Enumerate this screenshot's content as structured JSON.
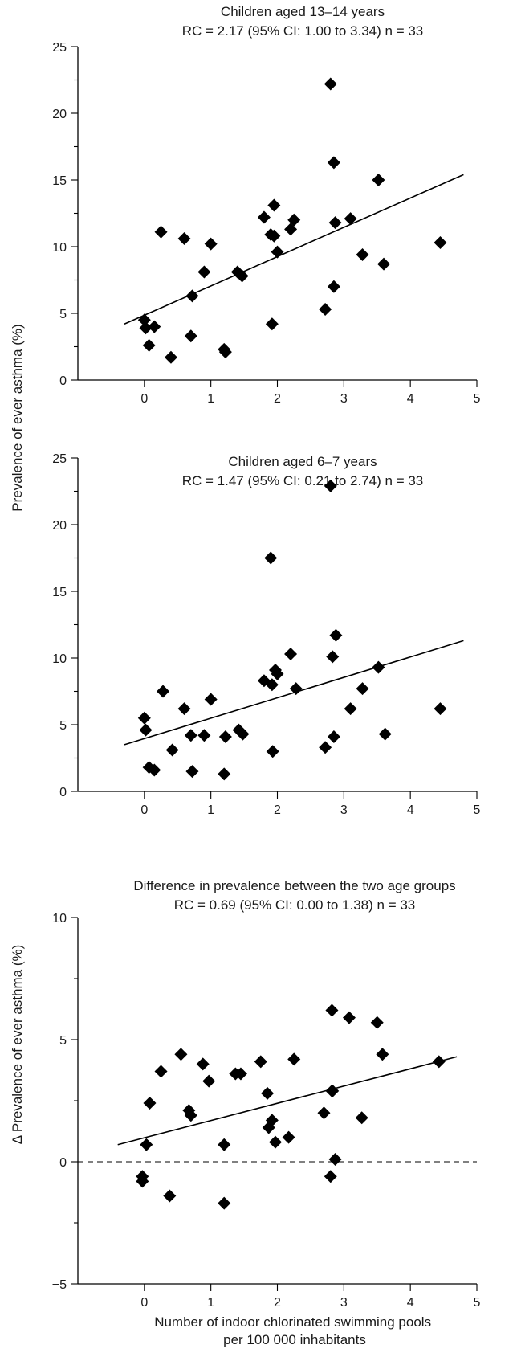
{
  "ylabel_shared": "Prevalence of ever asthma (%)",
  "chart_data": [
    {
      "type": "scatter",
      "title": "Children aged 13–14 years",
      "subtitle": "RC = 2.17 (95% CI: 1.00 to 3.34) n = 33",
      "xlabel": "",
      "ylabel": "Prevalence of ever asthma (%)",
      "xlim": [
        -1,
        5
      ],
      "ylim": [
        0,
        25
      ],
      "xticks": [
        "0",
        "1",
        "2",
        "3",
        "4",
        "5"
      ],
      "yticks": [
        "0",
        "5",
        "10",
        "15",
        "20",
        "25"
      ],
      "grid": false,
      "regression": {
        "x": [
          -0.3,
          4.8
        ],
        "y": [
          4.2,
          15.4
        ]
      },
      "x": [
        0.0,
        0.02,
        0.07,
        0.15,
        0.25,
        0.4,
        0.6,
        0.7,
        0.72,
        0.9,
        1.0,
        1.2,
        1.22,
        1.4,
        1.47,
        1.8,
        1.9,
        1.92,
        1.95,
        1.95,
        2.0,
        2.2,
        2.25,
        2.72,
        2.8,
        2.85,
        2.85,
        2.87,
        3.1,
        3.28,
        3.52,
        3.6,
        4.45
      ],
      "y": [
        4.5,
        3.9,
        2.6,
        4.0,
        11.1,
        1.7,
        10.6,
        3.3,
        6.3,
        8.1,
        10.2,
        2.3,
        2.1,
        8.1,
        7.8,
        12.2,
        10.9,
        4.2,
        13.1,
        10.8,
        9.6,
        11.3,
        12.0,
        5.3,
        22.2,
        16.3,
        7.0,
        11.8,
        12.1,
        9.4,
        15.0,
        8.7,
        10.3
      ]
    },
    {
      "type": "scatter",
      "title": "Children aged 6–7 years",
      "subtitle": "RC = 1.47 (95% CI: 0.21 to 2.74) n = 33",
      "xlabel": "",
      "ylabel": "Prevalence of ever asthma (%)",
      "xlim": [
        -1,
        5
      ],
      "ylim": [
        0,
        25
      ],
      "xticks": [
        "0",
        "1",
        "2",
        "3",
        "4",
        "5"
      ],
      "yticks": [
        "0",
        "5",
        "10",
        "15",
        "20",
        "25"
      ],
      "grid": false,
      "regression": {
        "x": [
          -0.3,
          4.8
        ],
        "y": [
          3.5,
          11.3
        ]
      },
      "x": [
        0.0,
        0.02,
        0.07,
        0.15,
        0.28,
        0.42,
        0.6,
        0.7,
        0.72,
        0.9,
        1.0,
        1.2,
        1.22,
        1.42,
        1.48,
        1.8,
        1.9,
        1.92,
        1.93,
        1.97,
        2.0,
        2.2,
        2.28,
        2.72,
        2.8,
        2.83,
        2.85,
        2.88,
        3.1,
        3.28,
        3.52,
        3.62,
        4.45
      ],
      "y": [
        5.5,
        4.6,
        1.8,
        1.6,
        7.5,
        3.1,
        6.2,
        4.2,
        1.5,
        4.2,
        6.9,
        1.3,
        4.1,
        4.6,
        4.3,
        8.3,
        17.5,
        8.0,
        3.0,
        9.1,
        8.8,
        10.3,
        7.7,
        3.3,
        22.9,
        10.1,
        4.1,
        11.7,
        6.2,
        7.7,
        9.3,
        4.3,
        6.2
      ]
    },
    {
      "type": "scatter",
      "title": "Difference in prevalence between the two age groups",
      "subtitle": "RC = 0.69 (95% CI: 0.00 to 1.38) n = 33",
      "xlabel": "Number of indoor chlorinated swimming pools per 100 000 inhabitants",
      "ylabel": "Δ Prevalence of ever asthma (%)",
      "xlim": [
        -1,
        5
      ],
      "ylim": [
        -5,
        10
      ],
      "xticks": [
        "0",
        "1",
        "2",
        "3",
        "4",
        "5"
      ],
      "yticks": [
        "−5",
        "0",
        "5",
        "10"
      ],
      "grid": false,
      "zero_reference_line": "dashed",
      "regression": {
        "x": [
          -0.4,
          4.7
        ],
        "y": [
          0.7,
          4.3
        ]
      },
      "x": [
        -0.03,
        -0.03,
        0.03,
        0.08,
        0.25,
        0.38,
        0.55,
        0.67,
        0.7,
        0.88,
        0.97,
        1.2,
        1.2,
        1.37,
        1.45,
        1.75,
        1.85,
        1.87,
        1.92,
        1.97,
        2.17,
        2.25,
        2.7,
        2.8,
        2.82,
        2.82,
        2.87,
        3.08,
        3.27,
        3.5,
        3.58,
        4.43,
        2.83
      ],
      "y": [
        -0.6,
        -0.8,
        0.7,
        2.4,
        3.7,
        -1.4,
        4.4,
        2.1,
        1.9,
        4.0,
        3.3,
        0.7,
        -1.7,
        3.6,
        3.6,
        4.1,
        2.8,
        1.4,
        1.7,
        0.8,
        1.0,
        4.2,
        2.0,
        -0.6,
        6.2,
        2.9,
        0.1,
        5.9,
        1.8,
        5.7,
        4.4,
        4.1,
        2.9
      ]
    }
  ]
}
